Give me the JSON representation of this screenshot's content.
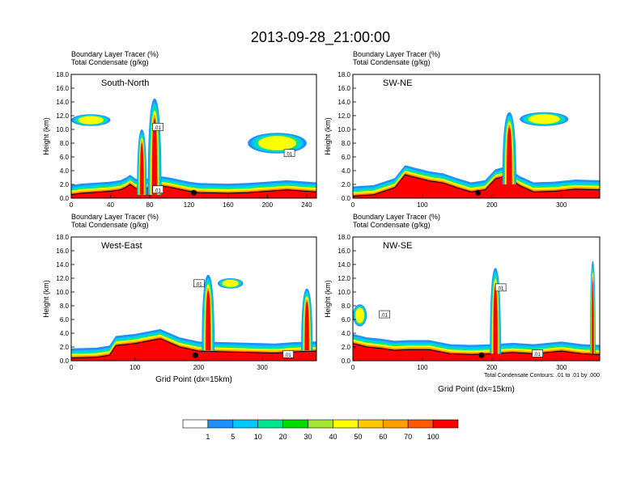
{
  "title": "2013-09-28_21:00:00",
  "chart_data": [
    {
      "type": "heatmap",
      "panel": "South-North",
      "var_label_1": "Boundary Layer Tracer",
      "var_unit_1": "(%)",
      "var_label_2": "Total Condensate",
      "var_unit_2": "(g/kg)",
      "ylabel": "Height (km)",
      "xlabel": "",
      "xlim": [
        0,
        250
      ],
      "ylim": [
        0,
        18
      ],
      "xticks": [
        "0",
        "40",
        "80",
        "120",
        "160",
        "200",
        "240"
      ],
      "yticks": [
        "0.0",
        "2.0",
        "4.0",
        "6.0",
        "8.0",
        "10.0",
        "12.0",
        "14.0",
        "16.0",
        "18.0"
      ],
      "contour_labels": [
        ".01",
        ".01",
        ".01"
      ],
      "profile": [
        [
          0,
          0.5
        ],
        [
          10,
          0.7
        ],
        [
          20,
          0.8
        ],
        [
          30,
          0.9
        ],
        [
          40,
          1.0
        ],
        [
          50,
          1.2
        ],
        [
          56,
          1.6
        ],
        [
          60,
          2.0
        ],
        [
          66,
          1.4
        ],
        [
          72,
          1.3
        ],
        [
          80,
          1.5
        ],
        [
          90,
          1.8
        ],
        [
          100,
          1.6
        ],
        [
          110,
          1.3
        ],
        [
          120,
          1.0
        ],
        [
          130,
          0.8
        ],
        [
          160,
          0.7
        ],
        [
          180,
          0.8
        ],
        [
          200,
          1.0
        ],
        [
          220,
          1.2
        ],
        [
          240,
          1.0
        ],
        [
          250,
          0.9
        ]
      ]
    },
    {
      "type": "heatmap",
      "panel": "SW-NE",
      "var_label_1": "Boundary Layer Tracer",
      "var_unit_1": "(%)",
      "var_label_2": "Total Condensate",
      "var_unit_2": "(g/kg)",
      "ylabel": "Height (km)",
      "xlabel": "",
      "xlim": [
        0,
        355
      ],
      "ylim": [
        0,
        18
      ],
      "xticks": [
        "0",
        "100",
        "200",
        "300"
      ],
      "yticks": [
        "0.0",
        "2.0",
        "4.0",
        "6.0",
        "8.0",
        "10.0",
        "12.0",
        "14.0",
        "16.0",
        "18.0"
      ],
      "contour_labels": [],
      "profile": [
        [
          0,
          0.3
        ],
        [
          30,
          0.5
        ],
        [
          60,
          1.5
        ],
        [
          75,
          3.4
        ],
        [
          90,
          3.0
        ],
        [
          110,
          2.5
        ],
        [
          130,
          2.2
        ],
        [
          150,
          1.5
        ],
        [
          170,
          0.9
        ],
        [
          190,
          1.2
        ],
        [
          205,
          2.8
        ],
        [
          220,
          3.2
        ],
        [
          240,
          1.8
        ],
        [
          260,
          0.9
        ],
        [
          290,
          1.0
        ],
        [
          320,
          1.3
        ],
        [
          355,
          1.2
        ]
      ]
    },
    {
      "type": "heatmap",
      "panel": "West-East",
      "var_label_1": "Boundary Layer Tracer",
      "var_unit_1": "(%)",
      "var_label_2": "Total Condensate",
      "var_unit_2": "(g/kg)",
      "ylabel": "Height (km)",
      "xlabel": "Grid Point (dx=15km)",
      "xlim": [
        0,
        385
      ],
      "ylim": [
        0,
        18
      ],
      "xticks": [
        "0",
        "100",
        "200",
        "300"
      ],
      "yticks": [
        "0.0",
        "2.0",
        "4.0",
        "6.0",
        "8.0",
        "10.0",
        "12.0",
        "14.0",
        "16.0",
        "18.0"
      ],
      "contour_labels": [
        ".01",
        ".01"
      ],
      "profile": [
        [
          0,
          0.4
        ],
        [
          40,
          0.5
        ],
        [
          60,
          0.8
        ],
        [
          70,
          2.2
        ],
        [
          100,
          2.5
        ],
        [
          140,
          3.2
        ],
        [
          170,
          2.0
        ],
        [
          200,
          1.4
        ],
        [
          240,
          1.3
        ],
        [
          280,
          1.2
        ],
        [
          320,
          1.1
        ],
        [
          350,
          1.3
        ],
        [
          385,
          1.4
        ]
      ]
    },
    {
      "type": "heatmap",
      "panel": "NW-SE",
      "var_label_1": "Boundary Layer Tracer",
      "var_unit_1": "(%)",
      "var_label_2": "Total Condensate",
      "var_unit_2": "(g/kg)",
      "ylabel": "Height (km)",
      "xlabel": "Grid Point (dx=15km)",
      "xlim": [
        0,
        355
      ],
      "ylim": [
        0,
        18
      ],
      "xticks": [
        "0",
        "100",
        "200",
        "300"
      ],
      "yticks": [
        "0.0",
        "2.0",
        "4.0",
        "6.0",
        "8.0",
        "10.0",
        "12.0",
        "14.0",
        "16.0",
        "18.0"
      ],
      "contour_labels": [
        ".01",
        ".01",
        ".01"
      ],
      "footnote": "Total Condensate Contours: .01 to .01 by .000",
      "profile": [
        [
          0,
          2.5
        ],
        [
          20,
          2.0
        ],
        [
          40,
          1.8
        ],
        [
          60,
          1.5
        ],
        [
          80,
          1.6
        ],
        [
          110,
          1.6
        ],
        [
          140,
          1.0
        ],
        [
          170,
          0.9
        ],
        [
          200,
          1.0
        ],
        [
          230,
          1.2
        ],
        [
          260,
          1.0
        ],
        [
          300,
          1.4
        ],
        [
          330,
          1.0
        ],
        [
          355,
          0.9
        ]
      ]
    }
  ],
  "colorbar": {
    "labels": [
      "1",
      "5",
      "10",
      "20",
      "30",
      "40",
      "50",
      "60",
      "70",
      "100"
    ],
    "colors": [
      "#ffffff",
      "#1e90ff",
      "#00c8ff",
      "#00e68c",
      "#00dc00",
      "#a0e632",
      "#ffff00",
      "#ffc800",
      "#ffa000",
      "#ff5a00",
      "#ff0000"
    ]
  }
}
